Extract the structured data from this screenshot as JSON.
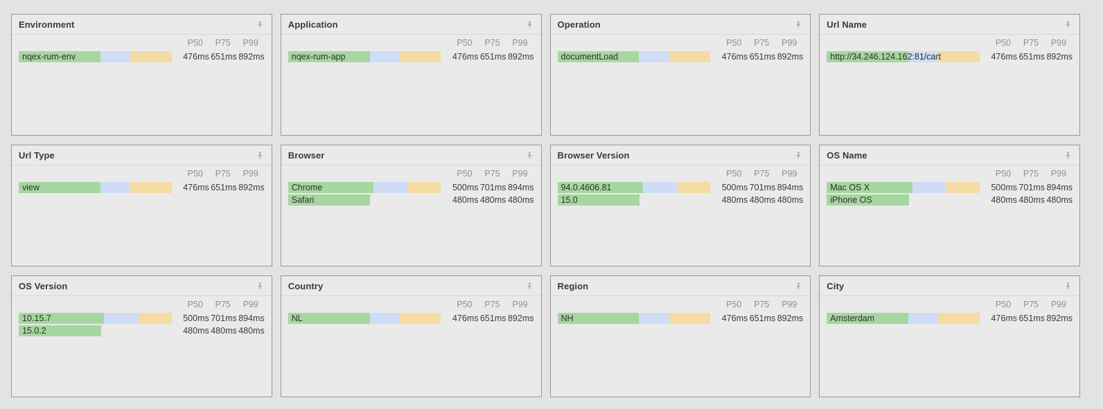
{
  "colors": {
    "page_bg": "#e3e3e3",
    "panel_bg": "#eaeaea",
    "p50_fill": "#a6d7a0",
    "p75_fill": "#cfdcf5",
    "p99_fill": "#f5dba4"
  },
  "columns": [
    "P50",
    "P75",
    "P99"
  ],
  "panels": [
    {
      "id": "environment",
      "title": "Environment",
      "rows": [
        {
          "label": "nqex-rum-env",
          "p50": 476,
          "p75": 651,
          "p99": 892,
          "p50_text": "476ms",
          "p75_text": "651ms",
          "p99_text": "892ms"
        }
      ]
    },
    {
      "id": "application",
      "title": "Application",
      "rows": [
        {
          "label": "nqex-rum-app",
          "p50": 476,
          "p75": 651,
          "p99": 892,
          "p50_text": "476ms",
          "p75_text": "651ms",
          "p99_text": "892ms"
        }
      ]
    },
    {
      "id": "operation",
      "title": "Operation",
      "rows": [
        {
          "label": "documentLoad",
          "p50": 476,
          "p75": 651,
          "p99": 892,
          "p50_text": "476ms",
          "p75_text": "651ms",
          "p99_text": "892ms"
        }
      ]
    },
    {
      "id": "url-name",
      "title": "Url Name",
      "rows": [
        {
          "label": "http://34.246.124.162:81/cart",
          "p50": 476,
          "p75": 651,
          "p99": 892,
          "p50_text": "476ms",
          "p75_text": "651ms",
          "p99_text": "892ms"
        }
      ]
    },
    {
      "id": "url-type",
      "title": "Url Type",
      "rows": [
        {
          "label": "view",
          "p50": 476,
          "p75": 651,
          "p99": 892,
          "p50_text": "476ms",
          "p75_text": "651ms",
          "p99_text": "892ms"
        }
      ]
    },
    {
      "id": "browser",
      "title": "Browser",
      "rows": [
        {
          "label": "Chrome",
          "p50": 500,
          "p75": 701,
          "p99": 894,
          "p50_text": "500ms",
          "p75_text": "701ms",
          "p99_text": "894ms"
        },
        {
          "label": "Safari",
          "p50": 480,
          "p75": 480,
          "p99": 480,
          "p50_text": "480ms",
          "p75_text": "480ms",
          "p99_text": "480ms"
        }
      ]
    },
    {
      "id": "browser-version",
      "title": "Browser Version",
      "rows": [
        {
          "label": "94.0.4606.81",
          "p50": 500,
          "p75": 701,
          "p99": 894,
          "p50_text": "500ms",
          "p75_text": "701ms",
          "p99_text": "894ms"
        },
        {
          "label": "15.0",
          "p50": 480,
          "p75": 480,
          "p99": 480,
          "p50_text": "480ms",
          "p75_text": "480ms",
          "p99_text": "480ms"
        }
      ]
    },
    {
      "id": "os-name",
      "title": "OS Name",
      "rows": [
        {
          "label": "Mac OS X",
          "p50": 500,
          "p75": 701,
          "p99": 894,
          "p50_text": "500ms",
          "p75_text": "701ms",
          "p99_text": "894ms"
        },
        {
          "label": "iPhone OS",
          "p50": 480,
          "p75": 480,
          "p99": 480,
          "p50_text": "480ms",
          "p75_text": "480ms",
          "p99_text": "480ms"
        }
      ]
    },
    {
      "id": "os-version",
      "title": "OS Version",
      "rows": [
        {
          "label": "10.15.7",
          "p50": 500,
          "p75": 701,
          "p99": 894,
          "p50_text": "500ms",
          "p75_text": "701ms",
          "p99_text": "894ms"
        },
        {
          "label": "15.0.2",
          "p50": 480,
          "p75": 480,
          "p99": 480,
          "p50_text": "480ms",
          "p75_text": "480ms",
          "p99_text": "480ms"
        }
      ]
    },
    {
      "id": "country",
      "title": "Country",
      "rows": [
        {
          "label": "NL",
          "p50": 476,
          "p75": 651,
          "p99": 892,
          "p50_text": "476ms",
          "p75_text": "651ms",
          "p99_text": "892ms"
        }
      ]
    },
    {
      "id": "region",
      "title": "Region",
      "rows": [
        {
          "label": "NH",
          "p50": 476,
          "p75": 651,
          "p99": 892,
          "p50_text": "476ms",
          "p75_text": "651ms",
          "p99_text": "892ms"
        }
      ]
    },
    {
      "id": "city",
      "title": "City",
      "rows": [
        {
          "label": "Amsterdam",
          "p50": 476,
          "p75": 651,
          "p99": 892,
          "p50_text": "476ms",
          "p75_text": "651ms",
          "p99_text": "892ms"
        }
      ]
    }
  ]
}
